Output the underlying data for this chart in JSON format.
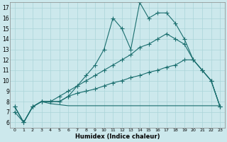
{
  "xlabel": "Humidex (Indice chaleur)",
  "bg_color": "#cce8ec",
  "grid_color": "#aad4d8",
  "line_color": "#1a6e6e",
  "xlim": [
    -0.5,
    23.5
  ],
  "ylim": [
    5.5,
    17.5
  ],
  "xticks": [
    0,
    1,
    2,
    3,
    4,
    5,
    6,
    7,
    8,
    9,
    10,
    11,
    12,
    13,
    14,
    15,
    16,
    17,
    18,
    19,
    20,
    21,
    22,
    23
  ],
  "yticks": [
    6,
    7,
    8,
    9,
    10,
    11,
    12,
    13,
    14,
    15,
    16,
    17
  ],
  "line1_x": [
    0,
    1,
    2,
    3,
    4,
    5,
    6,
    7,
    8,
    9,
    10,
    11,
    12,
    13,
    14,
    15,
    16,
    17,
    18,
    19,
    20,
    21,
    22,
    23
  ],
  "line1_y": [
    7.0,
    6.0,
    7.5,
    8.0,
    8.0,
    8.0,
    8.5,
    9.5,
    10.5,
    11.5,
    13.0,
    16.0,
    15.0,
    13.0,
    17.5,
    16.0,
    16.5,
    16.5,
    15.5,
    14.0,
    12.0,
    11.0,
    10.0,
    7.5
  ],
  "line2_x": [
    0,
    1,
    2,
    3,
    4,
    5,
    6,
    7,
    8,
    9,
    10,
    11,
    12,
    13,
    14,
    15,
    16,
    17,
    18,
    19,
    20,
    21,
    22,
    23
  ],
  "line2_y": [
    7.5,
    6.0,
    7.5,
    8.0,
    8.0,
    8.5,
    9.0,
    9.5,
    10.0,
    10.5,
    11.0,
    11.5,
    12.0,
    12.5,
    13.2,
    13.5,
    14.0,
    14.5,
    14.0,
    13.5,
    12.0,
    11.0,
    10.0,
    7.5
  ],
  "line3_x": [
    0,
    1,
    2,
    3,
    4,
    5,
    6,
    7,
    8,
    9,
    10,
    11,
    12,
    13,
    14,
    15,
    16,
    17,
    18,
    19,
    20,
    21,
    22,
    23
  ],
  "line3_y": [
    7.5,
    6.0,
    7.5,
    8.0,
    8.0,
    8.0,
    8.5,
    8.8,
    9.0,
    9.2,
    9.5,
    9.8,
    10.0,
    10.3,
    10.5,
    10.8,
    11.0,
    11.3,
    11.5,
    12.0,
    12.0,
    11.0,
    10.0,
    7.5
  ],
  "line4_x": [
    0,
    1,
    2,
    3,
    4,
    5,
    6,
    7,
    8,
    9,
    10,
    11,
    12,
    13,
    14,
    15,
    16,
    17,
    18,
    19,
    20,
    21,
    22,
    23
  ],
  "line4_y": [
    7.5,
    6.0,
    7.5,
    8.0,
    7.8,
    7.7,
    7.6,
    7.6,
    7.6,
    7.6,
    7.6,
    7.6,
    7.6,
    7.6,
    7.6,
    7.6,
    7.6,
    7.6,
    7.6,
    7.6,
    7.6,
    7.6,
    7.6,
    7.6
  ]
}
